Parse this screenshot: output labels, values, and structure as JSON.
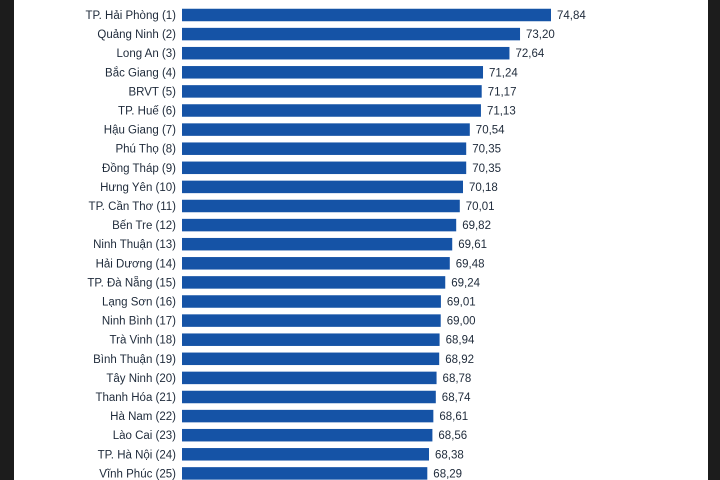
{
  "chart_data": {
    "type": "bar",
    "orientation": "horizontal",
    "categories": [
      "TP. Hải Phòng (1)",
      "Quảng Ninh (2)",
      "Long An (3)",
      "Bắc Giang (4)",
      "BRVT (5)",
      "TP. Huế (6)",
      "Hậu Giang (7)",
      "Phú Thọ (8)",
      "Đồng Tháp (9)",
      "Hưng Yên (10)",
      "TP. Cần Thơ (11)",
      "Bến Tre (12)",
      "Ninh Thuận (13)",
      "Hải Dương (14)",
      "TP. Đà Nẵng (15)",
      "Lạng Sơn (16)",
      "Ninh Bình (17)",
      "Trà Vinh (18)",
      "Bình Thuận (19)",
      "Tây Ninh (20)",
      "Thanh Hóa (21)",
      "Hà Nam (22)",
      "Lào Cai (23)",
      "TP. Hà Nội (24)",
      "Vĩnh Phúc (25)"
    ],
    "values": [
      74.84,
      73.2,
      72.64,
      71.24,
      71.17,
      71.13,
      70.54,
      70.35,
      70.35,
      70.18,
      70.01,
      69.82,
      69.61,
      69.48,
      69.24,
      69.01,
      69.0,
      68.94,
      68.92,
      68.78,
      68.74,
      68.61,
      68.56,
      68.38,
      68.29
    ],
    "value_labels": [
      "74,84",
      "73,20",
      "72,64",
      "71,24",
      "71,17",
      "71,13",
      "70,54",
      "70,35",
      "70,35",
      "70,18",
      "70,01",
      "69,82",
      "69,61",
      "69,48",
      "69,24",
      "69,01",
      "69,00",
      "68,94",
      "68,92",
      "68,78",
      "68,74",
      "68,61",
      "68,56",
      "68,38",
      "68,29"
    ],
    "title": "",
    "xlabel": "",
    "ylabel": "",
    "grid": false,
    "legend": "none",
    "bar_color": "#1553a6"
  }
}
